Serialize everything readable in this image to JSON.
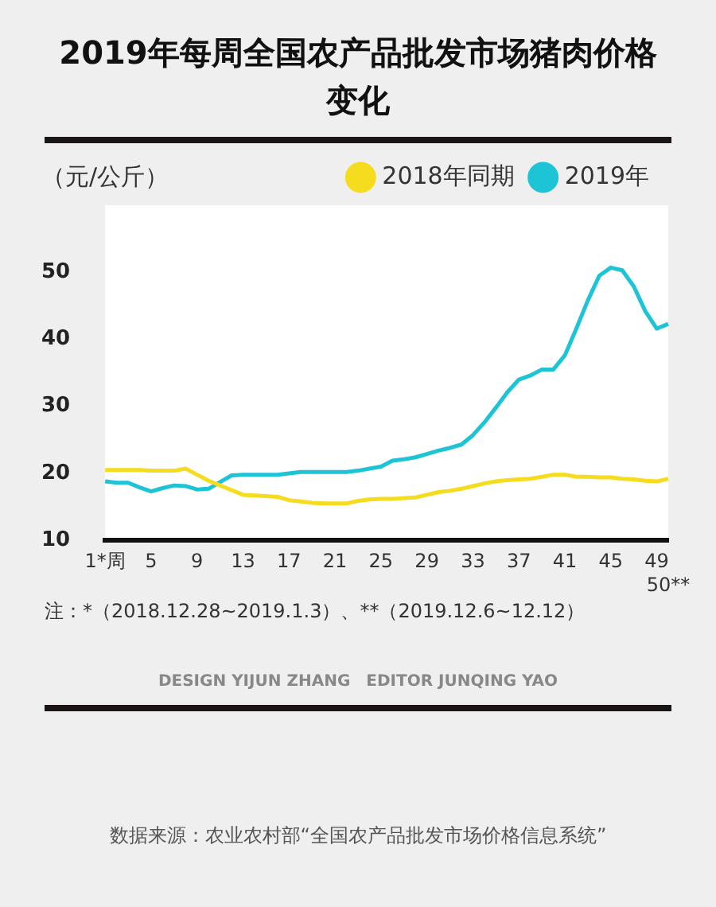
{
  "chart_data": {
    "type": "line",
    "title": "2019年每周全国农产品批发市场猪肉价格变化",
    "ylabel": "（元/公斤）",
    "categories": [
      "1*周",
      null,
      null,
      null,
      "5",
      null,
      null,
      null,
      "9",
      null,
      null,
      null,
      "13",
      null,
      null,
      null,
      "17",
      null,
      null,
      null,
      "21",
      null,
      null,
      null,
      "25",
      null,
      null,
      null,
      "29",
      null,
      null,
      null,
      "33",
      null,
      null,
      null,
      "37",
      null,
      null,
      null,
      "41",
      null,
      null,
      null,
      "45",
      null,
      null,
      null,
      "49",
      "50**"
    ],
    "series": [
      {
        "name": "2018年同期",
        "color": "#f5dc1e",
        "values": [
          20.5,
          20.5,
          20.5,
          20.5,
          20.4,
          20.4,
          20.4,
          20.7,
          19.8,
          18.9,
          18.2,
          17.5,
          16.8,
          16.7,
          16.6,
          16.5,
          16.0,
          15.8,
          15.6,
          15.5,
          15.5,
          15.5,
          15.9,
          16.1,
          16.2,
          16.2,
          16.3,
          16.4,
          16.8,
          17.2,
          17.4,
          17.7,
          18.1,
          18.5,
          18.8,
          19.0,
          19.1,
          19.2,
          19.5,
          19.8,
          19.8,
          19.5,
          19.5,
          19.4,
          19.4,
          19.2,
          19.1,
          18.9,
          18.8,
          19.2
        ]
      },
      {
        "name": "2019年",
        "color": "#1dc4d6",
        "values": [
          18.8,
          18.6,
          18.6,
          17.9,
          17.3,
          17.8,
          18.2,
          18.1,
          17.6,
          17.7,
          18.7,
          19.7,
          19.8,
          19.8,
          19.8,
          19.8,
          20.0,
          20.2,
          20.2,
          20.2,
          20.2,
          20.2,
          20.4,
          20.7,
          21.0,
          21.9,
          22.1,
          22.4,
          22.9,
          23.4,
          23.8,
          24.3,
          25.7,
          27.6,
          29.8,
          32.1,
          34.0,
          34.6,
          35.5,
          35.5,
          37.6,
          41.6,
          45.8,
          49.5,
          50.7,
          50.3,
          47.9,
          44.2,
          41.6,
          42.3
        ]
      }
    ],
    "ylim": [
      10,
      60
    ],
    "yticks": [
      10,
      20,
      30,
      40,
      50
    ],
    "grid": false,
    "legend": "top right",
    "annotations": [
      "注：*（2018.12.28~2019.1.3）、**（2019.12.6~12.12）",
      "DESIGN YIJUN ZHANG　EDITOR JUNQING YAO",
      "数据来源：农业农村部“全国农产品批发市场价格信息系统”"
    ]
  }
}
